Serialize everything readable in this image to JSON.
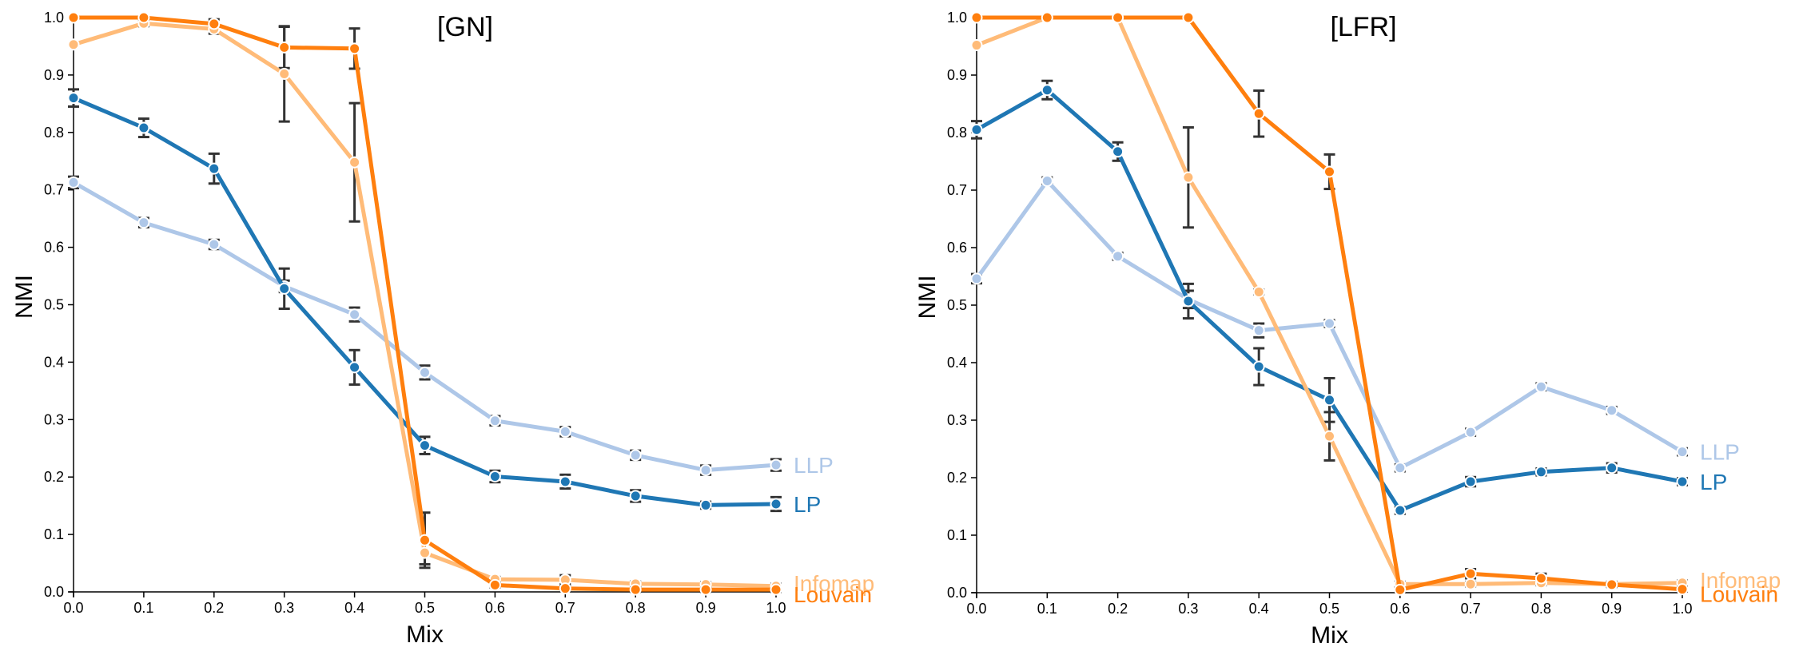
{
  "chart_data": [
    {
      "type": "line",
      "title": "[GN]",
      "xlabel": "Mix",
      "ylabel": "NMI",
      "xlim": [
        0,
        1
      ],
      "ylim": [
        0,
        1
      ],
      "x_ticks": [
        "0.0",
        "0.1",
        "0.2",
        "0.3",
        "0.4",
        "0.5",
        "0.6",
        "0.7",
        "0.8",
        "0.9",
        "1.0"
      ],
      "y_ticks": [
        "0.0",
        "0.1",
        "0.2",
        "0.3",
        "0.4",
        "0.5",
        "0.6",
        "0.7",
        "0.8",
        "0.9",
        "1.0"
      ],
      "x": [
        0.0,
        0.1,
        0.2,
        0.3,
        0.4,
        0.5,
        0.6,
        0.7,
        0.8,
        0.9,
        1.0
      ],
      "series": [
        {
          "name": "LLP",
          "color": "#aec7e8",
          "values": [
            0.713,
            0.643,
            0.605,
            0.532,
            0.483,
            0.382,
            0.298,
            0.279,
            0.238,
            0.212,
            0.221
          ],
          "errors": [
            0.01,
            0.008,
            0.008,
            0.01,
            0.012,
            0.012,
            0.008,
            0.008,
            0.008,
            0.008,
            0.01
          ]
        },
        {
          "name": "LP",
          "color": "#1f77b4",
          "values": [
            0.86,
            0.808,
            0.737,
            0.528,
            0.391,
            0.255,
            0.201,
            0.192,
            0.167,
            0.151,
            0.153
          ],
          "errors": [
            0.015,
            0.016,
            0.026,
            0.035,
            0.03,
            0.015,
            0.01,
            0.012,
            0.01,
            0.006,
            0.012
          ]
        },
        {
          "name": "Infomap",
          "color": "#ffbb78",
          "values": [
            0.953,
            0.99,
            0.98,
            0.902,
            0.748,
            0.068,
            0.022,
            0.021,
            0.014,
            0.013,
            0.01
          ],
          "errors": [
            0.0,
            0.005,
            0.008,
            0.083,
            0.103,
            0.02,
            0.004,
            0.008,
            0.004,
            0.004,
            0.004
          ]
        },
        {
          "name": "Louvain",
          "color": "#ff7f0e",
          "values": [
            1.0,
            1.0,
            0.989,
            0.948,
            0.946,
            0.09,
            0.012,
            0.006,
            0.004,
            0.004,
            0.004
          ],
          "errors": [
            0.0,
            0.002,
            0.008,
            0.036,
            0.035,
            0.048,
            0.004,
            0.004,
            0.004,
            0.004,
            0.004
          ]
        }
      ]
    },
    {
      "type": "line",
      "title": "[LFR]",
      "xlabel": "Mix",
      "ylabel": "NMI",
      "xlim": [
        0,
        1
      ],
      "ylim": [
        0,
        1
      ],
      "x_ticks": [
        "0.0",
        "0.1",
        "0.2",
        "0.3",
        "0.4",
        "0.5",
        "0.6",
        "0.7",
        "0.8",
        "0.9",
        "1.0"
      ],
      "y_ticks": [
        "0.0",
        "0.1",
        "0.2",
        "0.3",
        "0.4",
        "0.5",
        "0.6",
        "0.7",
        "0.8",
        "0.9",
        "1.0"
      ],
      "x": [
        0.0,
        0.1,
        0.2,
        0.3,
        0.4,
        0.5,
        0.6,
        0.7,
        0.8,
        0.9,
        1.0
      ],
      "series": [
        {
          "name": "LLP",
          "color": "#aec7e8",
          "values": [
            0.546,
            0.716,
            0.585,
            0.51,
            0.456,
            0.468,
            0.217,
            0.279,
            0.358,
            0.317,
            0.245
          ],
          "errors": [
            0.008,
            0.006,
            0.006,
            0.015,
            0.012,
            0.006,
            0.006,
            0.006,
            0.006,
            0.006,
            0.006
          ]
        },
        {
          "name": "LP",
          "color": "#1f77b4",
          "values": [
            0.805,
            0.874,
            0.767,
            0.507,
            0.393,
            0.335,
            0.143,
            0.193,
            0.21,
            0.217,
            0.193
          ],
          "errors": [
            0.015,
            0.016,
            0.016,
            0.03,
            0.032,
            0.038,
            0.006,
            0.008,
            0.006,
            0.008,
            0.006
          ]
        },
        {
          "name": "Infomap",
          "color": "#ffbb78",
          "values": [
            0.952,
            1.0,
            1.0,
            0.722,
            0.523,
            0.272,
            0.015,
            0.015,
            0.017,
            0.015,
            0.017
          ],
          "errors": [
            0.0,
            0.0,
            0.0,
            0.087,
            0.004,
            0.042,
            0.004,
            0.004,
            0.004,
            0.004,
            0.004
          ]
        },
        {
          "name": "Louvain",
          "color": "#ff7f0e",
          "values": [
            1.0,
            1.0,
            1.0,
            1.0,
            0.833,
            0.732,
            0.005,
            0.033,
            0.025,
            0.014,
            0.006
          ],
          "errors": [
            0.0,
            0.0,
            0.0,
            0.0,
            0.04,
            0.03,
            0.004,
            0.008,
            0.008,
            0.004,
            0.004
          ]
        }
      ]
    }
  ]
}
